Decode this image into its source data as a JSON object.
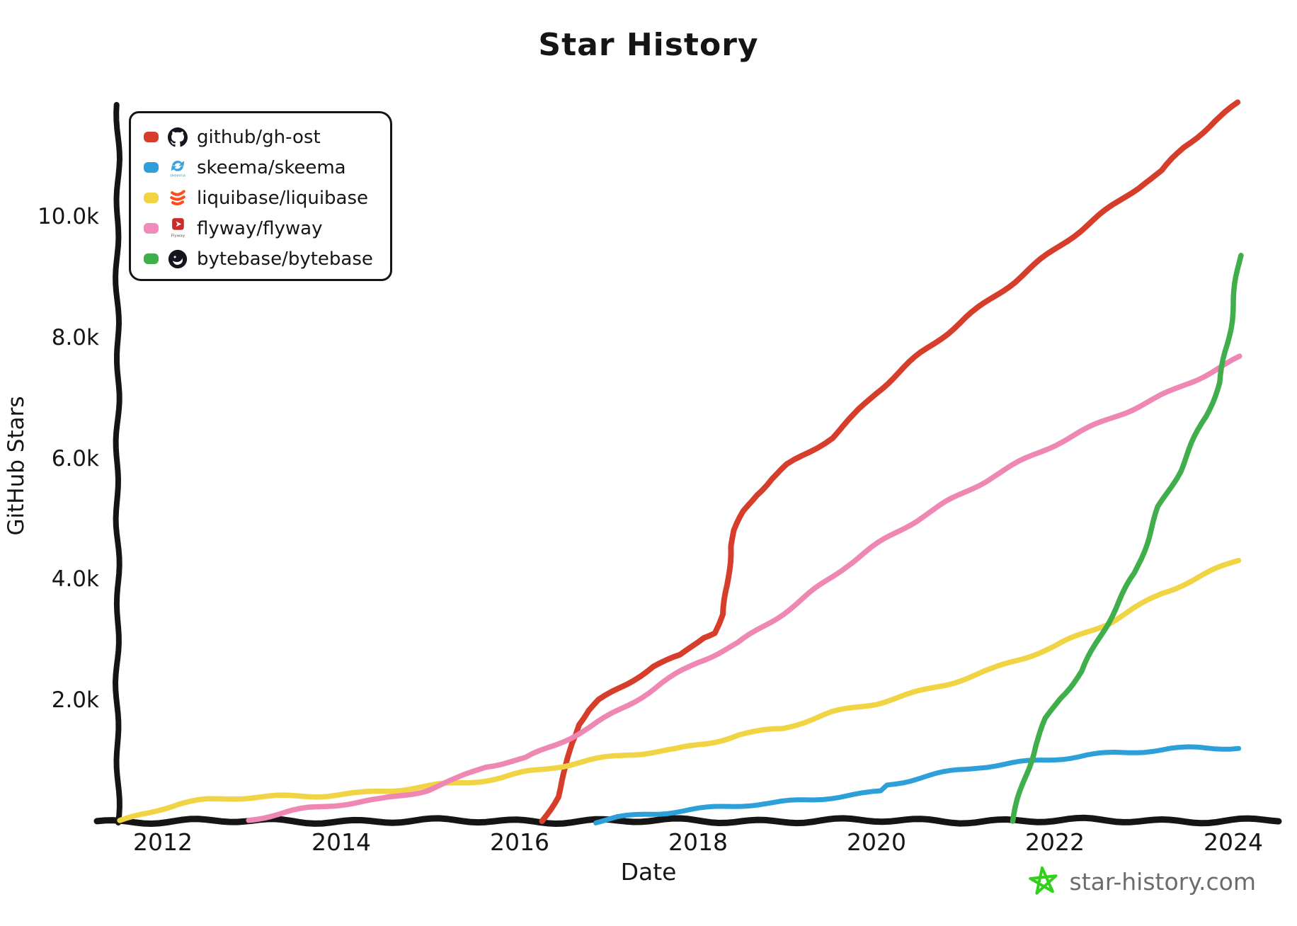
{
  "title": "Star History",
  "x_axis": {
    "label": "Date",
    "ticks": [
      {
        "label": "2012",
        "value": 2012
      },
      {
        "label": "2014",
        "value": 2014
      },
      {
        "label": "2016",
        "value": 2016
      },
      {
        "label": "2018",
        "value": 2018
      },
      {
        "label": "2020",
        "value": 2020
      },
      {
        "label": "2022",
        "value": 2022
      },
      {
        "label": "2024",
        "value": 2024
      }
    ]
  },
  "y_axis": {
    "label": "GitHub Stars",
    "ticks": [
      {
        "label": "2.0k",
        "value": 2000
      },
      {
        "label": "4.0k",
        "value": 4000
      },
      {
        "label": "6.0k",
        "value": 6000
      },
      {
        "label": "8.0k",
        "value": 8000
      },
      {
        "label": "10.0k",
        "value": 10000
      }
    ]
  },
  "legend": [
    {
      "label": "github/gh-ost",
      "icon": "github-icon",
      "color": "#d63e2b"
    },
    {
      "label": "skeema/skeema",
      "icon": "skeema-icon",
      "color": "#2d9fd9"
    },
    {
      "label": "liquibase/liquibase",
      "icon": "liquibase-icon",
      "color": "#f0d443"
    },
    {
      "label": "flyway/flyway",
      "icon": "flyway-icon",
      "color": "#f08bbb"
    },
    {
      "label": "bytebase/bytebase",
      "icon": "bytebase-icon",
      "color": "#3fae4b"
    }
  ],
  "footer": {
    "site": "star-history.com",
    "star_color": "#2fd11b",
    "text_color": "#6c6c6c"
  },
  "chart_data": {
    "type": "line",
    "title": "Star History",
    "xlabel": "Date",
    "ylabel": "GitHub Stars",
    "xlim": [
      2011.5,
      2024.45
    ],
    "ylim": [
      0,
      12000
    ],
    "x_tick_values": [
      2012,
      2014,
      2016,
      2018,
      2020,
      2022,
      2024
    ],
    "y_tick_values": [
      2000,
      4000,
      6000,
      8000,
      10000
    ],
    "grid": false,
    "legend_position": "top-left",
    "series": [
      {
        "name": "github/gh-ost",
        "color": "#d63e2b",
        "stroke_width": 8,
        "points": [
          [
            2016.25,
            0
          ],
          [
            2016.42,
            420
          ],
          [
            2016.52,
            900
          ],
          [
            2016.58,
            1300
          ],
          [
            2016.65,
            1600
          ],
          [
            2016.78,
            1830
          ],
          [
            2016.9,
            1990
          ],
          [
            2017.2,
            2260
          ],
          [
            2017.5,
            2560
          ],
          [
            2017.8,
            2740
          ],
          [
            2018.05,
            3060
          ],
          [
            2018.18,
            3140
          ],
          [
            2018.28,
            3420
          ],
          [
            2018.33,
            3900
          ],
          [
            2018.37,
            4550
          ],
          [
            2018.42,
            4800
          ],
          [
            2018.52,
            5120
          ],
          [
            2018.65,
            5400
          ],
          [
            2018.82,
            5670
          ],
          [
            2019.0,
            5900
          ],
          [
            2019.25,
            6120
          ],
          [
            2019.5,
            6360
          ],
          [
            2019.75,
            6700
          ],
          [
            2020.0,
            7080
          ],
          [
            2020.5,
            7740
          ],
          [
            2021.0,
            8340
          ],
          [
            2021.55,
            8930
          ],
          [
            2022.0,
            9440
          ],
          [
            2022.5,
            10020
          ],
          [
            2023.0,
            10580
          ],
          [
            2023.2,
            10760
          ],
          [
            2023.45,
            11140
          ],
          [
            2023.8,
            11570
          ],
          [
            2024.06,
            11870
          ]
        ]
      },
      {
        "name": "skeema/skeema",
        "color": "#2d9fd9",
        "stroke_width": 7,
        "points": [
          [
            2016.85,
            0
          ],
          [
            2017.1,
            70
          ],
          [
            2017.4,
            120
          ],
          [
            2017.75,
            160
          ],
          [
            2018.1,
            200
          ],
          [
            2018.5,
            260
          ],
          [
            2018.85,
            300
          ],
          [
            2019.2,
            360
          ],
          [
            2019.5,
            410
          ],
          [
            2019.9,
            460
          ],
          [
            2020.05,
            490
          ],
          [
            2020.12,
            600
          ],
          [
            2020.3,
            650
          ],
          [
            2020.6,
            740
          ],
          [
            2020.9,
            830
          ],
          [
            2021.15,
            900
          ],
          [
            2021.6,
            980
          ],
          [
            2022.0,
            1040
          ],
          [
            2022.35,
            1090
          ],
          [
            2022.75,
            1120
          ],
          [
            2023.0,
            1150
          ],
          [
            2023.3,
            1190
          ],
          [
            2023.6,
            1215
          ],
          [
            2024.06,
            1230
          ]
        ]
      },
      {
        "name": "liquibase/liquibase",
        "color": "#f0d443",
        "stroke_width": 7.5,
        "points": [
          [
            2011.52,
            0
          ],
          [
            2011.75,
            120
          ],
          [
            2011.95,
            200
          ],
          [
            2012.2,
            280
          ],
          [
            2012.5,
            340
          ],
          [
            2012.8,
            380
          ],
          [
            2013.1,
            400
          ],
          [
            2013.6,
            430
          ],
          [
            2014.2,
            460
          ],
          [
            2014.6,
            510
          ],
          [
            2015.0,
            570
          ],
          [
            2015.4,
            640
          ],
          [
            2015.8,
            730
          ],
          [
            2016.1,
            830
          ],
          [
            2016.4,
            910
          ],
          [
            2016.8,
            1000
          ],
          [
            2017.2,
            1090
          ],
          [
            2017.75,
            1180
          ],
          [
            2018.1,
            1300
          ],
          [
            2018.45,
            1440
          ],
          [
            2018.95,
            1540
          ],
          [
            2019.5,
            1780
          ],
          [
            2020.0,
            1950
          ],
          [
            2020.6,
            2200
          ],
          [
            2021.3,
            2510
          ],
          [
            2022.0,
            2880
          ],
          [
            2022.6,
            3290
          ],
          [
            2023.2,
            3780
          ],
          [
            2023.6,
            4020
          ],
          [
            2024.06,
            4310
          ]
        ]
      },
      {
        "name": "flyway/flyway",
        "color": "#ef87b5",
        "stroke_width": 7.5,
        "points": [
          [
            2012.96,
            30
          ],
          [
            2013.3,
            110
          ],
          [
            2013.63,
            200
          ],
          [
            2014.0,
            280
          ],
          [
            2014.43,
            360
          ],
          [
            2014.96,
            530
          ],
          [
            2015.3,
            700
          ],
          [
            2015.62,
            900
          ],
          [
            2016.07,
            1030
          ],
          [
            2016.4,
            1260
          ],
          [
            2016.8,
            1580
          ],
          [
            2017.2,
            1920
          ],
          [
            2017.6,
            2280
          ],
          [
            2018.0,
            2620
          ],
          [
            2018.45,
            2940
          ],
          [
            2018.8,
            3300
          ],
          [
            2019.17,
            3680
          ],
          [
            2019.67,
            4230
          ],
          [
            2020.1,
            4650
          ],
          [
            2020.52,
            5050
          ],
          [
            2020.78,
            5280
          ],
          [
            2021.3,
            5710
          ],
          [
            2022.0,
            6220
          ],
          [
            2022.7,
            6720
          ],
          [
            2023.35,
            7150
          ],
          [
            2024.08,
            7660
          ]
        ]
      },
      {
        "name": "bytebase/bytebase",
        "color": "#3fae4b",
        "stroke_width": 7.5,
        "points": [
          [
            2021.53,
            0
          ],
          [
            2021.6,
            350
          ],
          [
            2021.68,
            760
          ],
          [
            2021.78,
            1250
          ],
          [
            2021.9,
            1700
          ],
          [
            2022.05,
            2050
          ],
          [
            2022.15,
            2220
          ],
          [
            2022.3,
            2480
          ],
          [
            2022.6,
            3290
          ],
          [
            2022.9,
            4100
          ],
          [
            2023.16,
            5200
          ],
          [
            2023.4,
            5800
          ],
          [
            2023.55,
            6250
          ],
          [
            2023.7,
            6700
          ],
          [
            2023.85,
            7250
          ],
          [
            2023.93,
            7900
          ],
          [
            2024.0,
            8650
          ],
          [
            2024.08,
            9360
          ]
        ]
      }
    ]
  }
}
